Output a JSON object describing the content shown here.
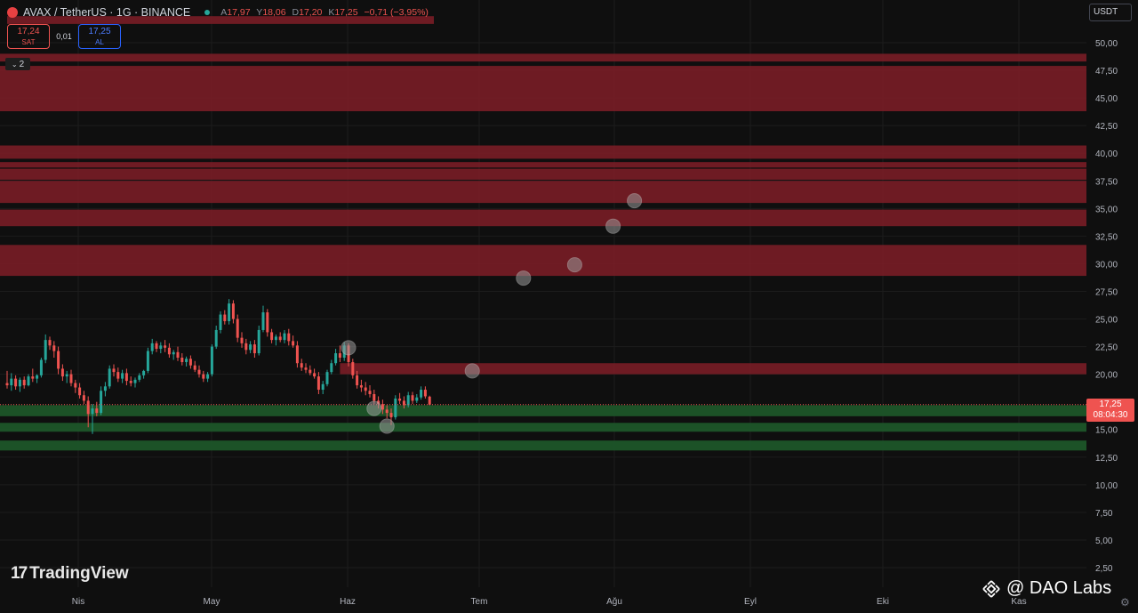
{
  "header": {
    "symbol": "AVAX / TetherUS · 1G · BINANCE",
    "ohlc": [
      {
        "key": "A",
        "value": "17,97"
      },
      {
        "key": "Y",
        "value": "18,06"
      },
      {
        "key": "D",
        "value": "17,20"
      },
      {
        "key": "K",
        "value": "17,25"
      }
    ],
    "change": "−0,71 (−3,95%)"
  },
  "trade": {
    "sell_price": "17,24",
    "sell_label": "SAT",
    "spread": "0,01",
    "buy_price": "17,25",
    "buy_label": "AL"
  },
  "collapse_count": "2",
  "currency_unit": "USDT",
  "last_price": {
    "price": "17,25",
    "countdown": "08:04:30"
  },
  "branding": {
    "tradingview": "TradingView",
    "watermark": "@ DAO Labs"
  },
  "icons": {
    "collapse": "chevron-down-icon",
    "settings": "gear-icon",
    "binance": "binance-icon",
    "logo": "tradingview-logo-icon"
  },
  "colors": {
    "background": "#0f0f0f",
    "up": "#26a69a",
    "down": "#ef5350",
    "resistance_zone": "#7f1d27",
    "support_zone": "#1e5a2a",
    "marker": "#9a9a9a"
  },
  "chart_data": {
    "type": "candlestick",
    "x_ticks": [
      "Nis",
      "May",
      "Haz",
      "Tem",
      "Ağu",
      "Eyl",
      "Eki",
      "Kas"
    ],
    "y_ticks": [
      "50,00",
      "47,50",
      "45,00",
      "42,50",
      "40,00",
      "37,50",
      "35,00",
      "32,50",
      "30,00",
      "27,50",
      "25,00",
      "22,50",
      "20,00",
      "15,00",
      "12,50",
      "10,00",
      "7,50",
      "5,00",
      "2,50"
    ],
    "y_range": [
      0.75,
      51.5
    ],
    "last_price": 17.25,
    "resistance_zones": [
      {
        "low": 51.7,
        "high": 52.4,
        "from": "2024-03-25",
        "to": "2024-07-03"
      },
      {
        "low": 48.3,
        "high": 49.0
      },
      {
        "low": 43.8,
        "high": 47.9
      },
      {
        "low": 39.5,
        "high": 40.7
      },
      {
        "low": 38.7,
        "high": 39.2
      },
      {
        "low": 37.6,
        "high": 38.6
      },
      {
        "low": 35.5,
        "high": 37.5
      },
      {
        "low": 33.4,
        "high": 34.9
      },
      {
        "low": 28.9,
        "high": 31.7
      },
      {
        "low": 20.0,
        "high": 21.0,
        "from": "2024-06-11"
      }
    ],
    "support_zones": [
      {
        "low": 16.2,
        "high": 17.2
      },
      {
        "low": 14.8,
        "high": 15.6
      },
      {
        "low": 13.1,
        "high": 14.0
      }
    ],
    "markers": [
      {
        "date": "2024-06-13",
        "price": 22.4
      },
      {
        "date": "2024-06-19",
        "price": 16.9
      },
      {
        "date": "2024-06-22",
        "price": 15.3
      },
      {
        "date": "2024-07-12",
        "price": 20.3
      },
      {
        "date": "2024-07-24",
        "price": 28.7
      },
      {
        "date": "2024-08-05",
        "price": 29.9
      },
      {
        "date": "2024-08-14",
        "price": 33.4
      },
      {
        "date": "2024-08-19",
        "price": 35.7
      }
    ],
    "candles": [
      [
        19.2,
        20.3,
        18.7,
        19.0
      ],
      [
        19.0,
        20.1,
        18.5,
        19.6
      ],
      [
        19.6,
        19.9,
        18.6,
        18.9
      ],
      [
        18.9,
        19.7,
        18.4,
        19.5
      ],
      [
        19.5,
        19.8,
        18.7,
        19.0
      ],
      [
        19.0,
        20.0,
        18.9,
        19.8
      ],
      [
        19.8,
        20.5,
        19.3,
        19.6
      ],
      [
        19.6,
        20.0,
        19.2,
        19.9
      ],
      [
        19.9,
        21.5,
        19.7,
        21.3
      ],
      [
        21.3,
        23.6,
        21.0,
        23.1
      ],
      [
        23.1,
        23.4,
        22.2,
        22.6
      ],
      [
        22.6,
        23.0,
        21.5,
        22.1
      ],
      [
        22.1,
        22.5,
        20.0,
        20.5
      ],
      [
        20.5,
        20.9,
        19.4,
        19.8
      ],
      [
        19.8,
        20.3,
        19.2,
        20.0
      ],
      [
        20.0,
        20.4,
        18.9,
        19.2
      ],
      [
        19.2,
        19.5,
        18.3,
        18.8
      ],
      [
        18.8,
        19.2,
        17.8,
        18.1
      ],
      [
        18.1,
        18.5,
        17.3,
        17.6
      ],
      [
        17.6,
        18.0,
        15.2,
        16.4
      ],
      [
        16.4,
        17.3,
        14.6,
        16.9
      ],
      [
        16.9,
        17.5,
        16.2,
        16.5
      ],
      [
        16.5,
        18.9,
        16.3,
        18.5
      ],
      [
        18.5,
        19.3,
        18.0,
        18.9
      ],
      [
        18.9,
        20.8,
        18.7,
        20.5
      ],
      [
        20.5,
        20.9,
        19.8,
        20.2
      ],
      [
        20.2,
        20.6,
        19.3,
        19.6
      ],
      [
        19.6,
        20.4,
        19.2,
        20.1
      ],
      [
        20.1,
        20.5,
        19.0,
        19.4
      ],
      [
        19.4,
        19.8,
        18.9,
        19.2
      ],
      [
        19.2,
        19.7,
        18.8,
        19.5
      ],
      [
        19.5,
        20.1,
        19.3,
        19.9
      ],
      [
        19.9,
        20.4,
        19.6,
        20.3
      ],
      [
        20.3,
        22.4,
        20.1,
        22.1
      ],
      [
        22.1,
        23.2,
        21.8,
        22.8
      ],
      [
        22.8,
        23.0,
        22.0,
        22.3
      ],
      [
        22.3,
        22.9,
        21.9,
        22.6
      ],
      [
        22.6,
        23.1,
        22.0,
        22.4
      ],
      [
        22.4,
        22.8,
        21.5,
        21.8
      ],
      [
        21.8,
        22.2,
        21.3,
        22.0
      ],
      [
        22.0,
        22.5,
        21.2,
        21.5
      ],
      [
        21.5,
        21.9,
        20.8,
        21.1
      ],
      [
        21.1,
        21.6,
        20.7,
        21.4
      ],
      [
        21.4,
        21.7,
        20.5,
        20.8
      ],
      [
        20.8,
        21.2,
        20.2,
        20.4
      ],
      [
        20.4,
        20.8,
        19.7,
        20.0
      ],
      [
        20.0,
        20.3,
        19.3,
        19.6
      ],
      [
        19.6,
        20.2,
        19.3,
        20.0
      ],
      [
        20.0,
        22.7,
        19.8,
        22.5
      ],
      [
        22.5,
        24.4,
        22.3,
        24.0
      ],
      [
        24.0,
        25.7,
        23.7,
        25.4
      ],
      [
        25.4,
        25.8,
        24.5,
        24.8
      ],
      [
        24.8,
        26.8,
        24.5,
        26.4
      ],
      [
        26.4,
        26.7,
        24.6,
        25.0
      ],
      [
        25.0,
        25.4,
        22.9,
        23.3
      ],
      [
        23.3,
        23.8,
        22.4,
        22.8
      ],
      [
        22.8,
        23.2,
        21.8,
        22.2
      ],
      [
        22.2,
        23.0,
        21.9,
        22.7
      ],
      [
        22.7,
        23.1,
        21.5,
        21.9
      ],
      [
        21.9,
        24.4,
        21.7,
        24.0
      ],
      [
        24.0,
        26.2,
        23.8,
        25.6
      ],
      [
        25.6,
        25.9,
        23.4,
        23.8
      ],
      [
        23.8,
        24.1,
        22.8,
        23.1
      ],
      [
        23.1,
        23.6,
        22.6,
        23.4
      ],
      [
        23.4,
        23.8,
        22.9,
        23.1
      ],
      [
        23.1,
        24.0,
        22.8,
        23.7
      ],
      [
        23.7,
        24.1,
        22.6,
        23.0
      ],
      [
        23.0,
        23.5,
        22.4,
        22.6
      ],
      [
        22.6,
        23.0,
        20.6,
        21.0
      ],
      [
        21.0,
        21.4,
        20.3,
        20.6
      ],
      [
        20.6,
        21.0,
        20.1,
        20.4
      ],
      [
        20.4,
        20.8,
        19.9,
        20.1
      ],
      [
        20.1,
        20.5,
        19.6,
        19.8
      ],
      [
        19.8,
        20.2,
        18.2,
        18.6
      ],
      [
        18.6,
        19.4,
        18.2,
        19.1
      ],
      [
        19.1,
        20.4,
        18.9,
        20.2
      ],
      [
        20.2,
        21.3,
        20.0,
        21.0
      ],
      [
        21.0,
        22.3,
        20.8,
        21.9
      ],
      [
        21.9,
        22.6,
        21.1,
        21.5
      ],
      [
        21.5,
        22.9,
        21.2,
        22.6
      ],
      [
        22.6,
        22.8,
        20.7,
        21.1
      ],
      [
        21.1,
        21.4,
        19.6,
        19.9
      ],
      [
        19.9,
        20.3,
        18.7,
        19.0
      ],
      [
        19.0,
        19.5,
        18.4,
        18.8
      ],
      [
        18.8,
        19.3,
        18.1,
        18.5
      ],
      [
        18.5,
        19.0,
        17.9,
        18.2
      ],
      [
        18.2,
        18.6,
        17.3,
        17.6
      ],
      [
        17.6,
        18.0,
        16.9,
        17.3
      ],
      [
        17.3,
        17.7,
        16.4,
        16.8
      ],
      [
        16.8,
        17.2,
        16.0,
        16.5
      ],
      [
        16.5,
        16.9,
        15.4,
        16.1
      ],
      [
        16.1,
        18.1,
        15.9,
        17.8
      ],
      [
        17.8,
        18.3,
        17.3,
        17.6
      ],
      [
        17.6,
        18.0,
        16.9,
        17.2
      ],
      [
        17.2,
        18.4,
        17.0,
        18.1
      ],
      [
        18.1,
        18.4,
        17.3,
        17.6
      ],
      [
        17.6,
        18.2,
        17.4,
        17.9
      ],
      [
        17.9,
        18.9,
        17.7,
        18.6
      ],
      [
        18.6,
        18.9,
        17.8,
        18.0
      ],
      [
        17.97,
        18.06,
        17.2,
        17.25
      ]
    ]
  }
}
